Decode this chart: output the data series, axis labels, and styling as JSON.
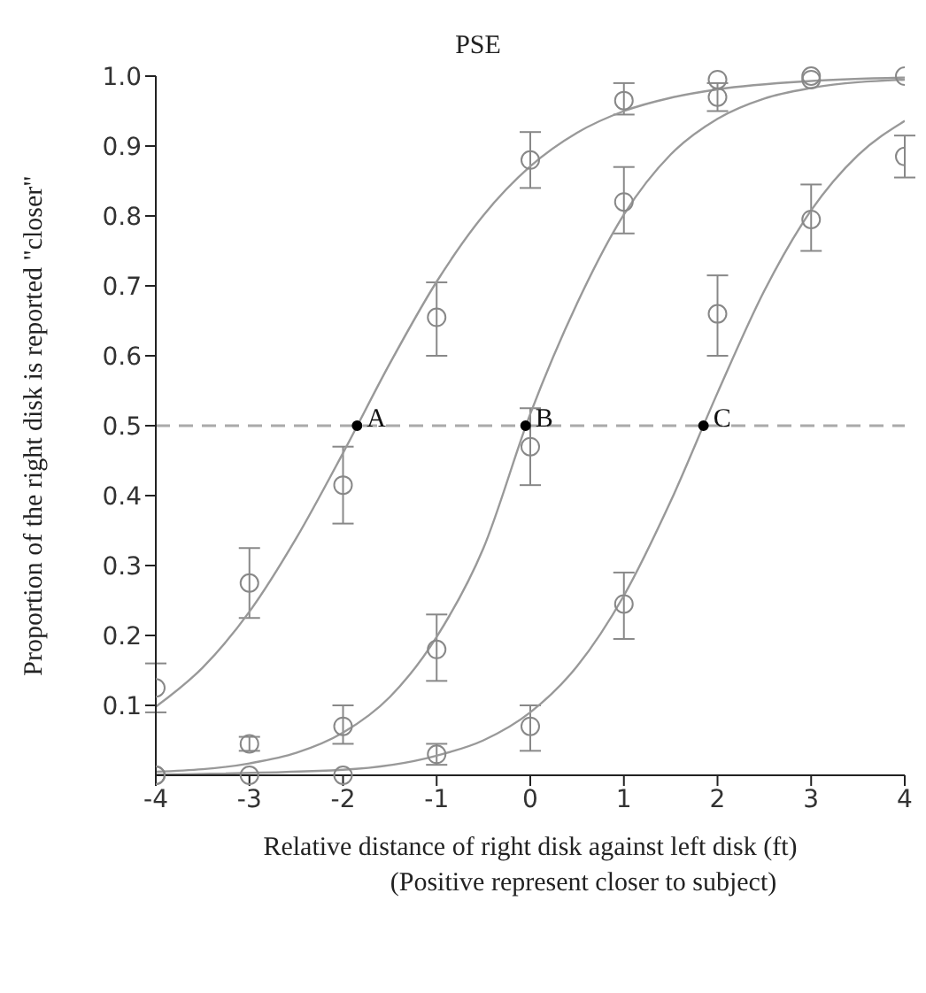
{
  "chart_data": {
    "type": "scatter",
    "title": "PSE",
    "xlabel": "Relative distance of right disk against left disk (ft)\n(Positive represent closer to subject)",
    "ylabel": "Proportion of the right disk is reported \"closer\"",
    "x": [
      -4,
      -3,
      -2,
      -1,
      0,
      1,
      2,
      3,
      4
    ],
    "series": [
      {
        "marker": "circle",
        "color": "#888888",
        "values": [
          0.125,
          0.275,
          0.415,
          0.655,
          0.88,
          0.965,
          0.995,
          1.0,
          1.0
        ],
        "errors": [
          [
            0.09,
            0.16
          ],
          [
            0.225,
            0.325
          ],
          [
            0.36,
            0.47
          ],
          [
            0.6,
            0.705
          ],
          [
            0.84,
            0.92
          ],
          [
            0.945,
            0.99
          ],
          null,
          null,
          null
        ]
      },
      {
        "marker": "circle",
        "color": "#888888",
        "values": [
          0.0,
          0.045,
          0.07,
          0.18,
          0.47,
          0.82,
          0.97,
          0.995,
          null
        ],
        "errors": [
          null,
          [
            0.035,
            0.055
          ],
          [
            0.045,
            0.1
          ],
          [
            0.135,
            0.23
          ],
          [
            0.415,
            0.525
          ],
          [
            0.775,
            0.87
          ],
          [
            0.95,
            0.99
          ],
          null,
          null
        ]
      },
      {
        "marker": "circle",
        "color": "#888888",
        "values": [
          0.0,
          0.0,
          0.0,
          0.03,
          0.07,
          0.245,
          0.66,
          0.795,
          0.885
        ],
        "errors": [
          null,
          null,
          null,
          [
            0.015,
            0.045
          ],
          [
            0.035,
            0.1
          ],
          [
            0.195,
            0.29
          ],
          [
            0.6,
            0.715
          ],
          [
            0.75,
            0.845
          ],
          [
            0.855,
            0.915
          ]
        ]
      },
      {
        "type": "line",
        "color": "#999999",
        "x": [
          -4,
          -3.5,
          -3,
          -2.5,
          -2,
          -1.5,
          -1,
          -0.5,
          0,
          0.5,
          1,
          1.5,
          2,
          3,
          4
        ],
        "values": [
          0.098,
          0.154,
          0.234,
          0.339,
          0.461,
          0.589,
          0.706,
          0.801,
          0.871,
          0.919,
          0.95,
          0.969,
          0.981,
          0.993,
          0.998
        ]
      },
      {
        "type": "line",
        "color": "#999999",
        "x": [
          -4,
          -3,
          -2.5,
          -2,
          -1.5,
          -1,
          -0.5,
          0,
          0.5,
          1,
          1.5,
          2,
          2.5,
          3,
          4
        ],
        "values": [
          0.005,
          0.017,
          0.032,
          0.061,
          0.112,
          0.198,
          0.325,
          0.517,
          0.675,
          0.802,
          0.888,
          0.939,
          0.968,
          0.983,
          0.995
        ]
      },
      {
        "type": "line",
        "color": "#999999",
        "x": [
          -4,
          -2,
          -1,
          -0.5,
          0,
          0.5,
          1,
          1.5,
          2,
          2.5,
          3,
          3.5,
          4
        ],
        "values": [
          0.001,
          0.008,
          0.028,
          0.05,
          0.09,
          0.156,
          0.257,
          0.392,
          0.547,
          0.693,
          0.808,
          0.887,
          0.936
        ]
      }
    ],
    "ref_lines": [
      {
        "axis": "y",
        "value": 0.5,
        "color": "#aaaaaa",
        "line_style": "dashed"
      }
    ],
    "annotations": [
      {
        "text": "A",
        "x": -1.85,
        "y": 0.5
      },
      {
        "text": "B",
        "x": -0.05,
        "y": 0.5
      },
      {
        "text": "C",
        "x": 1.85,
        "y": 0.5
      }
    ],
    "xlim": [
      -4,
      4
    ],
    "xticks": [
      -4,
      -3,
      -2,
      -1,
      0,
      1,
      2,
      3,
      4
    ],
    "ylim": [
      0,
      1.0
    ],
    "yticks": [
      0.1,
      0.2,
      0.3,
      0.4,
      0.5,
      0.6,
      0.7,
      0.8,
      0.9,
      {
        "value": 1.0,
        "label": "1.0"
      }
    ]
  }
}
